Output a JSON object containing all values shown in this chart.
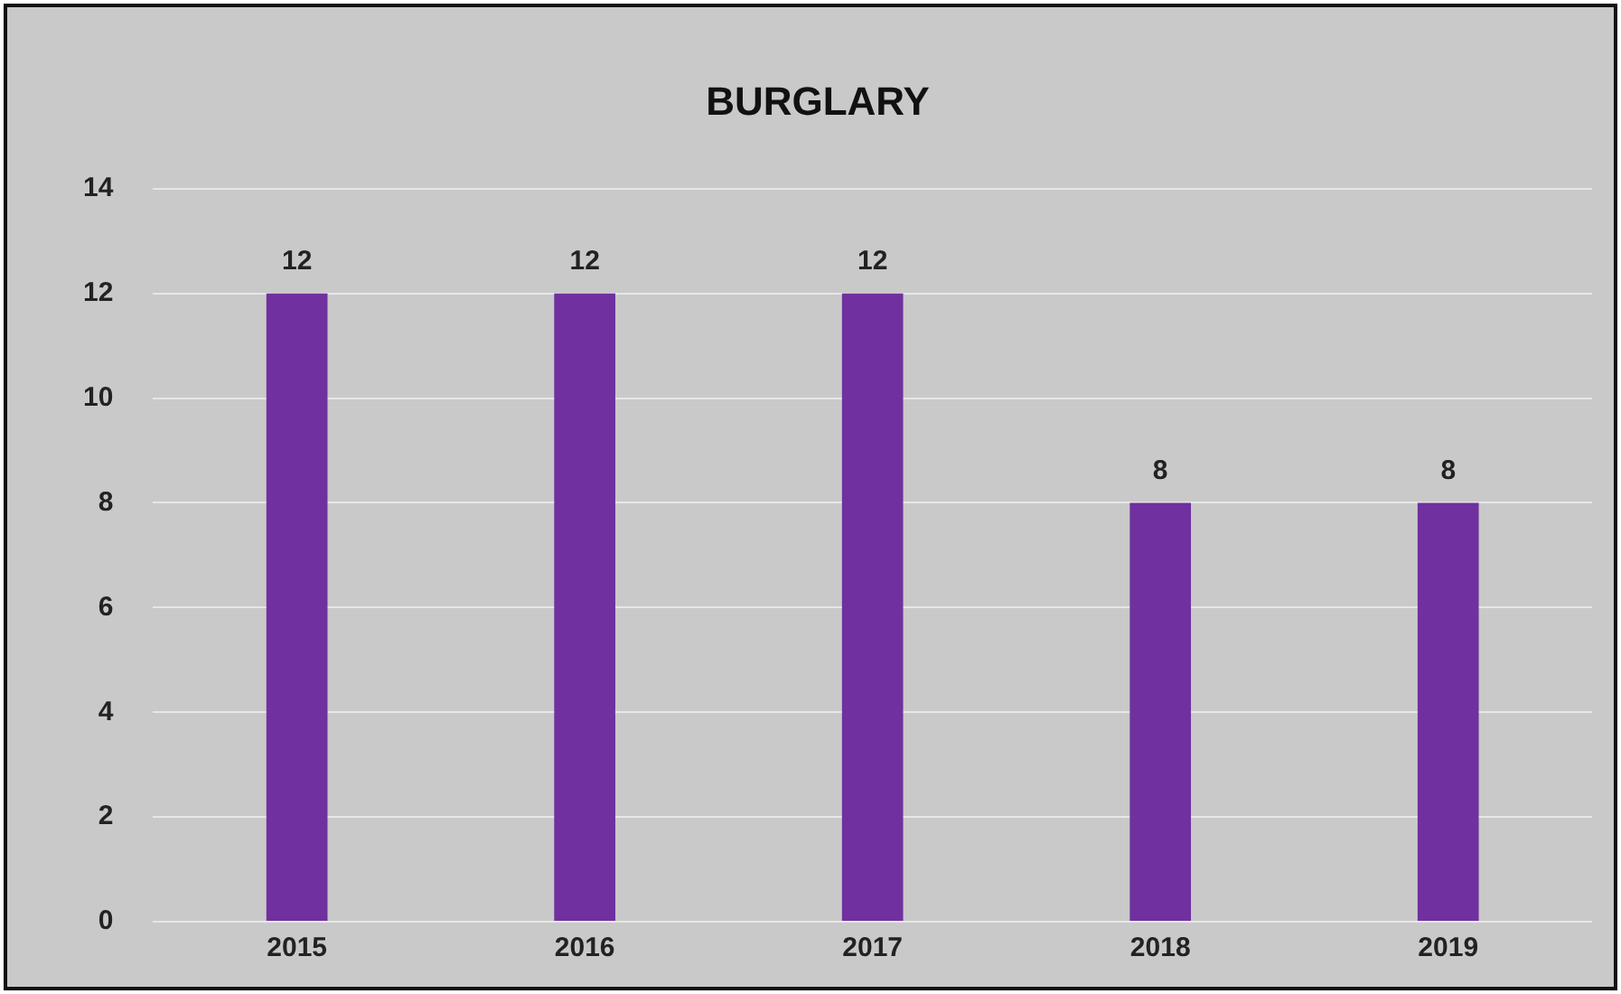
{
  "chart_data": {
    "type": "bar",
    "title": "BURGLARY",
    "categories": [
      "2015",
      "2016",
      "2017",
      "2018",
      "2019"
    ],
    "values": [
      12,
      12,
      12,
      8,
      8
    ],
    "color": "#7030a0",
    "ylim": [
      0,
      14
    ],
    "yticks": [
      0,
      2,
      4,
      6,
      8,
      10,
      12,
      14
    ],
    "grid": "y",
    "data_labels": true,
    "legend": false
  }
}
